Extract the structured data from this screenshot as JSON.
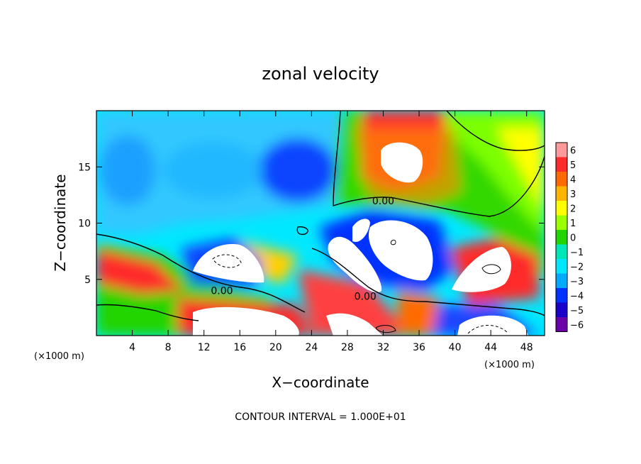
{
  "chart_data": {
    "type": "heatmap",
    "title": "zonal velocity",
    "xlabel": "X−coordinate",
    "ylabel": "Z−coordinate",
    "x_unit_left": "(×1000 m)",
    "x_unit_right": "(×1000 m)",
    "xlim": [
      0,
      50
    ],
    "ylim": [
      0,
      20
    ],
    "x_ticks": [
      4,
      8,
      12,
      16,
      20,
      24,
      28,
      32,
      36,
      40,
      44,
      48
    ],
    "y_ticks": [
      5,
      10,
      15
    ],
    "colorbar": {
      "levels": [
        6,
        5,
        4,
        3,
        2,
        1,
        0,
        -1,
        -2,
        -3,
        -4,
        -5,
        -6
      ],
      "level_labels": [
        "6",
        "5",
        "4",
        "3",
        "2",
        "1",
        "0",
        "−1",
        "−2",
        "−3",
        "−4",
        "−5",
        "−6"
      ],
      "colors": [
        "#ff9a9a",
        "#ff2a2a",
        "#ff6a00",
        "#ffb400",
        "#ffff00",
        "#9cff00",
        "#22d400",
        "#00e6b8",
        "#00e8ff",
        "#00aaff",
        "#0033ff",
        "#1a00c8",
        "#6a00a8"
      ]
    },
    "saturated_color": "#ffffff",
    "contour_labels": [
      {
        "text": "0.00",
        "x": 32.0,
        "z": 12.0
      },
      {
        "text": "0.00",
        "x": 14.0,
        "z": 4.0
      },
      {
        "text": "0.00",
        "x": 30.0,
        "z": 3.5
      }
    ],
    "annotation": "CONTOUR INTERVAL = 1.000E+01"
  },
  "colors": {
    "background": "#ffffff",
    "axis": "#000000"
  }
}
